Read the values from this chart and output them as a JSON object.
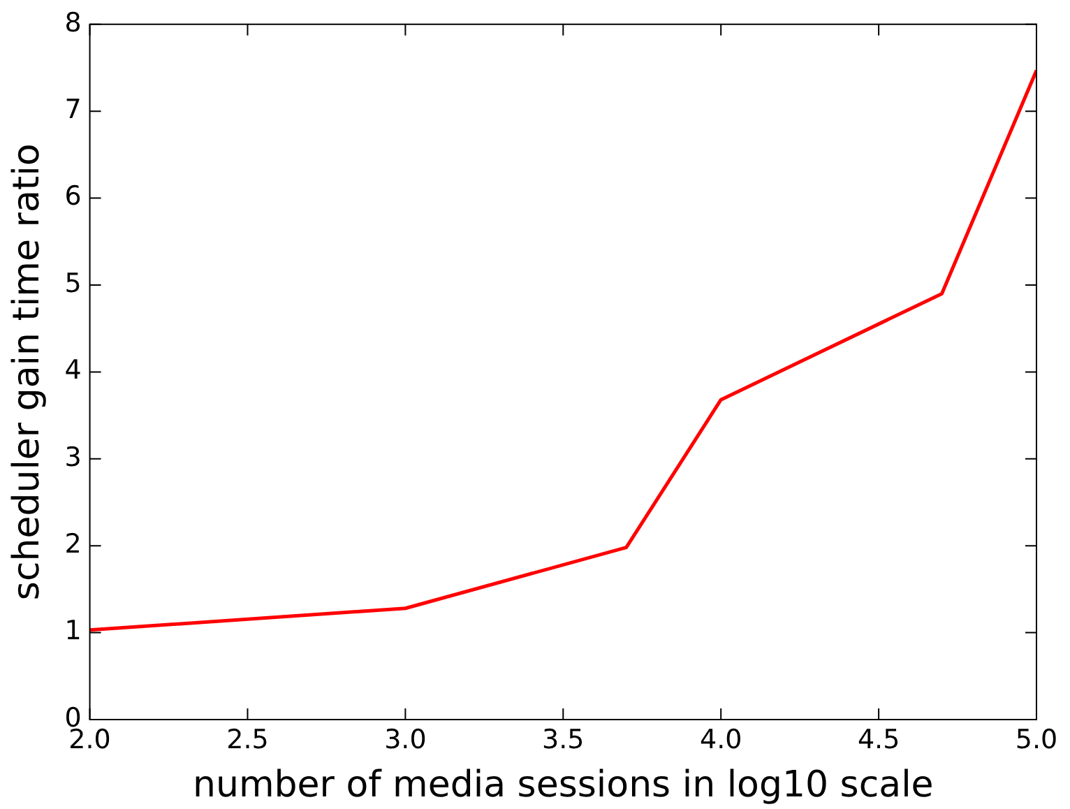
{
  "chart_data": {
    "type": "line",
    "xlabel": "number of media sessions in log10 scale",
    "ylabel": "scheduler gain time ratio",
    "series": [
      {
        "color": "#ff0000",
        "x": [
          2.0,
          3.0,
          3.7,
          4.0,
          4.7,
          5.0
        ],
        "values": [
          1.03,
          1.28,
          1.98,
          3.68,
          4.9,
          7.47
        ]
      }
    ],
    "xlim": [
      2.0,
      5.0
    ],
    "xticks": [
      {
        "value": 2,
        "label": "2.0"
      },
      {
        "value": 2.5,
        "label": "2.5"
      },
      {
        "value": 3,
        "label": "3.0"
      },
      {
        "value": 3.5,
        "label": "3.5"
      },
      {
        "value": 4,
        "label": "4.0"
      },
      {
        "value": 4.5,
        "label": "4.5"
      },
      {
        "value": 5,
        "label": "5.0"
      }
    ],
    "ylim": [
      0,
      8
    ],
    "yticks": [
      0,
      1,
      2,
      3,
      4,
      5,
      6,
      7,
      8
    ],
    "grid": false,
    "legend": false,
    "marker": "none",
    "line_style": "solid"
  }
}
